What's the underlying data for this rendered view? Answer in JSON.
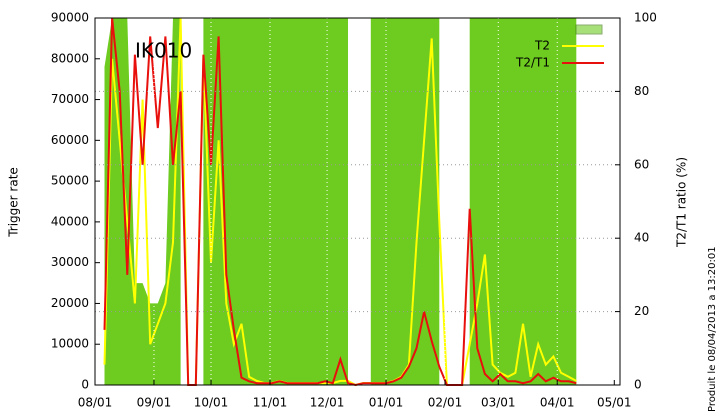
{
  "chart_data": {
    "type": "line",
    "annotation": "IK010",
    "ylabel": "Trigger rate",
    "y2label": "T2/T1 ratio (%)",
    "side_note": "Produit le 08/04/2013 a 13:20:01",
    "xlim": [
      "08/01",
      "05/04"
    ],
    "xticks": [
      "08/01",
      "09/01",
      "10/01",
      "11/01",
      "12/01",
      "01/01",
      "02/01",
      "03/01",
      "04/01",
      "05/01"
    ],
    "ylim": [
      0,
      90000
    ],
    "yticks": [
      0,
      10000,
      20000,
      30000,
      40000,
      50000,
      60000,
      70000,
      80000,
      90000
    ],
    "y2lim": [
      0,
      100
    ],
    "y2ticks": [
      0,
      20,
      40,
      60,
      80,
      100
    ],
    "grid": true,
    "legend": "upper right",
    "x": [
      "08/06",
      "08/10",
      "08/14",
      "08/18",
      "08/22",
      "08/26",
      "08/30",
      "09/03",
      "09/07",
      "09/11",
      "09/15",
      "09/19",
      "09/23",
      "09/27",
      "10/01",
      "10/05",
      "10/09",
      "10/13",
      "10/17",
      "10/21",
      "10/25",
      "10/29",
      "11/02",
      "11/06",
      "11/10",
      "11/14",
      "11/18",
      "11/22",
      "11/26",
      "11/30",
      "12/04",
      "12/08",
      "12/12",
      "12/16",
      "12/20",
      "12/24",
      "12/28",
      "01/01",
      "01/05",
      "01/09",
      "01/13",
      "01/17",
      "01/21",
      "01/25",
      "01/29",
      "02/02",
      "02/06",
      "02/10",
      "02/14",
      "02/18",
      "02/22",
      "02/26",
      "03/02",
      "03/06",
      "03/10",
      "03/14",
      "03/18",
      "03/22",
      "03/26",
      "03/30",
      "04/03",
      "04/07",
      "04/11",
      "04/15"
    ],
    "series": [
      {
        "color": "#6dcc1f",
        "fill": true,
        "values": [
          78000,
          90000,
          90000,
          90000,
          25000,
          25000,
          20000,
          20000,
          25000,
          90000,
          90000,
          null,
          null,
          90000,
          90000,
          90000,
          90000,
          90000,
          90000,
          90000,
          90000,
          90000,
          90000,
          90000,
          90000,
          90000,
          90000,
          90000,
          90000,
          90000,
          90000,
          90000,
          90000,
          null,
          null,
          90000,
          90000,
          90000,
          90000,
          90000,
          90000,
          90000,
          90000,
          90000,
          90000,
          null,
          null,
          null,
          90000,
          90000,
          90000,
          90000,
          90000,
          90000,
          90000,
          90000,
          90000,
          90000,
          90000,
          90000,
          90000,
          90000,
          90000,
          null
        ]
      },
      {
        "name": "T2",
        "color": "#ffff00",
        "values": [
          5000,
          80000,
          60000,
          40000,
          20000,
          70000,
          10000,
          15000,
          20000,
          35000,
          90000,
          0,
          0,
          80000,
          30000,
          60000,
          20000,
          10000,
          15000,
          2000,
          1000,
          500,
          500,
          1000,
          500,
          500,
          500,
          500,
          500,
          500,
          500,
          1000,
          1000,
          0,
          500,
          500,
          500,
          500,
          1000,
          2000,
          5000,
          35000,
          60000,
          85000,
          40000,
          0,
          0,
          0,
          10000,
          20000,
          32000,
          5000,
          3000,
          2000,
          3000,
          15000,
          2000,
          10000,
          5000,
          7000,
          3000,
          2000,
          1000,
          null
        ]
      },
      {
        "name": "T2/T1",
        "color": "#e8100c",
        "axis": "y2",
        "values": [
          15,
          100,
          80,
          30,
          90,
          60,
          95,
          70,
          95,
          60,
          80,
          0,
          0,
          90,
          60,
          95,
          30,
          15,
          2,
          1,
          0.5,
          0.5,
          0.5,
          1,
          0.5,
          0.5,
          0.5,
          0.5,
          0.5,
          1,
          0.5,
          7,
          0.5,
          0,
          0.5,
          0.5,
          0.5,
          0.5,
          1,
          2,
          5,
          10,
          20,
          12,
          5,
          0,
          0,
          0,
          48,
          10,
          3,
          1,
          3,
          1,
          1,
          0.5,
          1,
          3,
          1,
          2,
          1,
          1,
          0.5,
          null
        ]
      }
    ]
  }
}
